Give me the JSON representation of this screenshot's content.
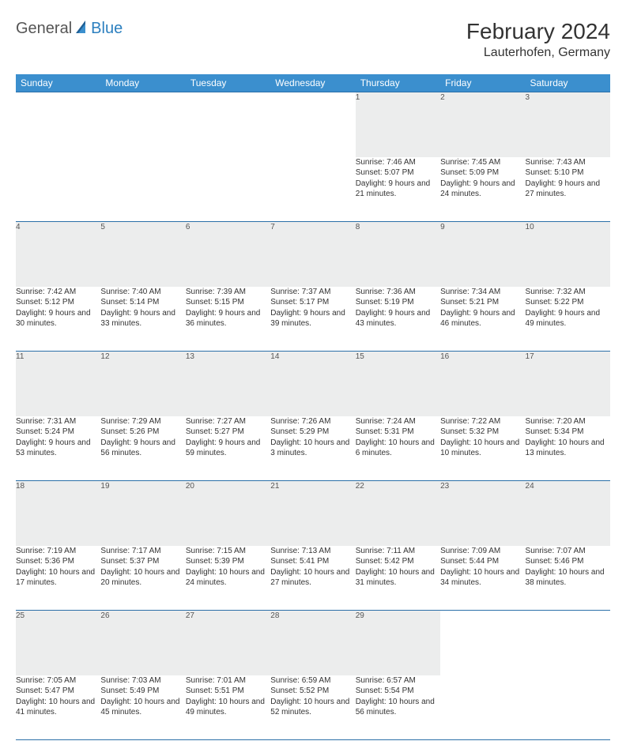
{
  "logo": {
    "general": "General",
    "blue": "Blue"
  },
  "title": "February 2024",
  "location": "Lauterhofen, Germany",
  "colors": {
    "header_bg": "#3b8fce",
    "header_text": "#ffffff",
    "daynum_bg": "#eceded",
    "rule": "#2b6fa8",
    "text": "#333333",
    "logo_gray": "#555555",
    "logo_blue": "#2b7fbf"
  },
  "weekdays": [
    "Sunday",
    "Monday",
    "Tuesday",
    "Wednesday",
    "Thursday",
    "Friday",
    "Saturday"
  ],
  "weeks": [
    [
      null,
      null,
      null,
      null,
      {
        "n": "1",
        "sr": "7:46 AM",
        "ss": "5:07 PM",
        "dl": "9 hours and 21 minutes."
      },
      {
        "n": "2",
        "sr": "7:45 AM",
        "ss": "5:09 PM",
        "dl": "9 hours and 24 minutes."
      },
      {
        "n": "3",
        "sr": "7:43 AM",
        "ss": "5:10 PM",
        "dl": "9 hours and 27 minutes."
      }
    ],
    [
      {
        "n": "4",
        "sr": "7:42 AM",
        "ss": "5:12 PM",
        "dl": "9 hours and 30 minutes."
      },
      {
        "n": "5",
        "sr": "7:40 AM",
        "ss": "5:14 PM",
        "dl": "9 hours and 33 minutes."
      },
      {
        "n": "6",
        "sr": "7:39 AM",
        "ss": "5:15 PM",
        "dl": "9 hours and 36 minutes."
      },
      {
        "n": "7",
        "sr": "7:37 AM",
        "ss": "5:17 PM",
        "dl": "9 hours and 39 minutes."
      },
      {
        "n": "8",
        "sr": "7:36 AM",
        "ss": "5:19 PM",
        "dl": "9 hours and 43 minutes."
      },
      {
        "n": "9",
        "sr": "7:34 AM",
        "ss": "5:21 PM",
        "dl": "9 hours and 46 minutes."
      },
      {
        "n": "10",
        "sr": "7:32 AM",
        "ss": "5:22 PM",
        "dl": "9 hours and 49 minutes."
      }
    ],
    [
      {
        "n": "11",
        "sr": "7:31 AM",
        "ss": "5:24 PM",
        "dl": "9 hours and 53 minutes."
      },
      {
        "n": "12",
        "sr": "7:29 AM",
        "ss": "5:26 PM",
        "dl": "9 hours and 56 minutes."
      },
      {
        "n": "13",
        "sr": "7:27 AM",
        "ss": "5:27 PM",
        "dl": "9 hours and 59 minutes."
      },
      {
        "n": "14",
        "sr": "7:26 AM",
        "ss": "5:29 PM",
        "dl": "10 hours and 3 minutes."
      },
      {
        "n": "15",
        "sr": "7:24 AM",
        "ss": "5:31 PM",
        "dl": "10 hours and 6 minutes."
      },
      {
        "n": "16",
        "sr": "7:22 AM",
        "ss": "5:32 PM",
        "dl": "10 hours and 10 minutes."
      },
      {
        "n": "17",
        "sr": "7:20 AM",
        "ss": "5:34 PM",
        "dl": "10 hours and 13 minutes."
      }
    ],
    [
      {
        "n": "18",
        "sr": "7:19 AM",
        "ss": "5:36 PM",
        "dl": "10 hours and 17 minutes."
      },
      {
        "n": "19",
        "sr": "7:17 AM",
        "ss": "5:37 PM",
        "dl": "10 hours and 20 minutes."
      },
      {
        "n": "20",
        "sr": "7:15 AM",
        "ss": "5:39 PM",
        "dl": "10 hours and 24 minutes."
      },
      {
        "n": "21",
        "sr": "7:13 AM",
        "ss": "5:41 PM",
        "dl": "10 hours and 27 minutes."
      },
      {
        "n": "22",
        "sr": "7:11 AM",
        "ss": "5:42 PM",
        "dl": "10 hours and 31 minutes."
      },
      {
        "n": "23",
        "sr": "7:09 AM",
        "ss": "5:44 PM",
        "dl": "10 hours and 34 minutes."
      },
      {
        "n": "24",
        "sr": "7:07 AM",
        "ss": "5:46 PM",
        "dl": "10 hours and 38 minutes."
      }
    ],
    [
      {
        "n": "25",
        "sr": "7:05 AM",
        "ss": "5:47 PM",
        "dl": "10 hours and 41 minutes."
      },
      {
        "n": "26",
        "sr": "7:03 AM",
        "ss": "5:49 PM",
        "dl": "10 hours and 45 minutes."
      },
      {
        "n": "27",
        "sr": "7:01 AM",
        "ss": "5:51 PM",
        "dl": "10 hours and 49 minutes."
      },
      {
        "n": "28",
        "sr": "6:59 AM",
        "ss": "5:52 PM",
        "dl": "10 hours and 52 minutes."
      },
      {
        "n": "29",
        "sr": "6:57 AM",
        "ss": "5:54 PM",
        "dl": "10 hours and 56 minutes."
      },
      null,
      null
    ]
  ],
  "labels": {
    "sunrise": "Sunrise:",
    "sunset": "Sunset:",
    "daylight": "Daylight:"
  }
}
